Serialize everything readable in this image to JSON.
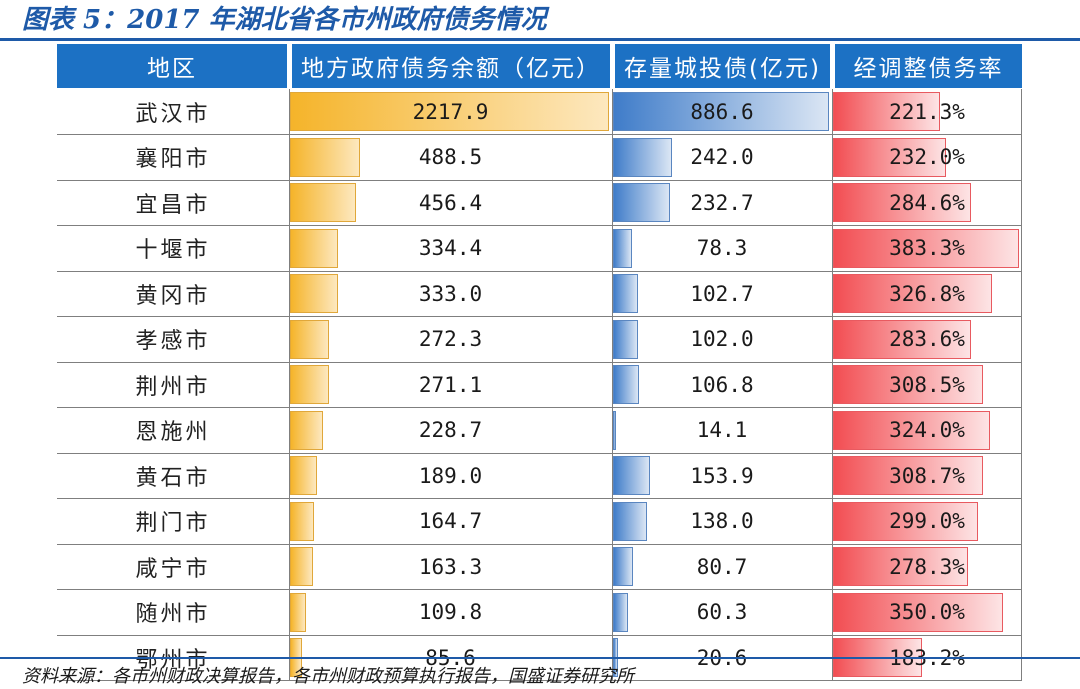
{
  "title": "图表 5：2017 年湖北省各市州政府债务情况",
  "source": "资料来源：各市州财政决算报告，各市州财政预算执行报告，国盛证券研究所",
  "colors": {
    "header_bg": "#1c71c4",
    "title": "#1e5aa8",
    "debt_bar": "#f5b42a",
    "bond_bar": "#3f7cc9",
    "rate_bar": "#f24d52"
  },
  "chart_data": {
    "type": "table",
    "columns": [
      "地区",
      "地方政府债务余额（亿元）",
      "存量城投债(亿元)",
      "经调整债务率"
    ],
    "rows": [
      {
        "region": "武汉市",
        "debt": "2217.9",
        "bond": "886.6",
        "rate": "221.3%"
      },
      {
        "region": "襄阳市",
        "debt": "488.5",
        "bond": "242.0",
        "rate": "232.0%"
      },
      {
        "region": "宜昌市",
        "debt": "456.4",
        "bond": "232.7",
        "rate": "284.6%"
      },
      {
        "region": "十堰市",
        "debt": "334.4",
        "bond": "78.3",
        "rate": "383.3%"
      },
      {
        "region": "黄冈市",
        "debt": "333.0",
        "bond": "102.7",
        "rate": "326.8%"
      },
      {
        "region": "孝感市",
        "debt": "272.3",
        "bond": "102.0",
        "rate": "283.6%"
      },
      {
        "region": "荆州市",
        "debt": "271.1",
        "bond": "106.8",
        "rate": "308.5%"
      },
      {
        "region": "恩施州",
        "debt": "228.7",
        "bond": "14.1",
        "rate": "324.0%"
      },
      {
        "region": "黄石市",
        "debt": "189.0",
        "bond": "153.9",
        "rate": "308.7%"
      },
      {
        "region": "荆门市",
        "debt": "164.7",
        "bond": "138.0",
        "rate": "299.0%"
      },
      {
        "region": "咸宁市",
        "debt": "163.3",
        "bond": "80.7",
        "rate": "278.3%"
      },
      {
        "region": "随州市",
        "debt": "109.8",
        "bond": "60.3",
        "rate": "350.0%"
      },
      {
        "region": "鄂州市",
        "debt": "85.6",
        "bond": "20.6",
        "rate": "183.2%"
      }
    ]
  }
}
